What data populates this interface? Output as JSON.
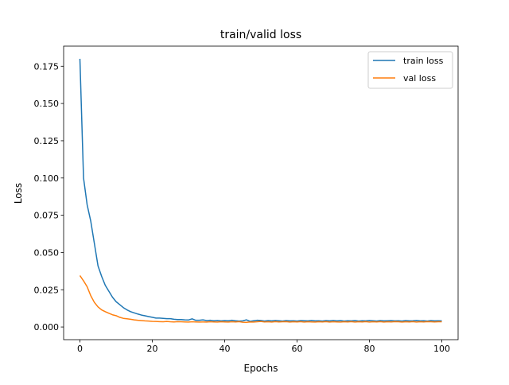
{
  "chart_data": {
    "type": "line",
    "title": "train/valid loss",
    "xlabel": "Epochs",
    "ylabel": "Loss",
    "xlim": [
      -4.5,
      104.5
    ],
    "ylim": [
      -0.0085,
      0.1885
    ],
    "xticks": [
      0,
      20,
      40,
      60,
      80,
      100
    ],
    "xtick_labels": [
      "0",
      "20",
      "40",
      "60",
      "80",
      "100"
    ],
    "yticks": [
      0.0,
      0.025,
      0.05,
      0.075,
      0.1,
      0.125,
      0.15,
      0.175
    ],
    "ytick_labels": [
      "0.000",
      "0.025",
      "0.050",
      "0.075",
      "0.100",
      "0.125",
      "0.150",
      "0.175"
    ],
    "grid": false,
    "legend": "top-right",
    "x": [
      0,
      1,
      2,
      3,
      4,
      5,
      6,
      7,
      8,
      9,
      10,
      11,
      12,
      13,
      14,
      15,
      16,
      17,
      18,
      19,
      20,
      21,
      22,
      23,
      24,
      25,
      26,
      27,
      28,
      29,
      30,
      31,
      32,
      33,
      34,
      35,
      36,
      37,
      38,
      39,
      40,
      41,
      42,
      43,
      44,
      45,
      46,
      47,
      48,
      49,
      50,
      51,
      52,
      53,
      54,
      55,
      56,
      57,
      58,
      59,
      60,
      61,
      62,
      63,
      64,
      65,
      66,
      67,
      68,
      69,
      70,
      71,
      72,
      73,
      74,
      75,
      76,
      77,
      78,
      79,
      80,
      81,
      82,
      83,
      84,
      85,
      86,
      87,
      88,
      89,
      90,
      91,
      92,
      93,
      94,
      95,
      96,
      97,
      98,
      99,
      100
    ],
    "series": [
      {
        "name": "train loss",
        "color": "#1f77b4",
        "values": [
          0.18,
          0.1,
          0.082,
          0.071,
          0.056,
          0.041,
          0.034,
          0.028,
          0.024,
          0.02,
          0.017,
          0.015,
          0.013,
          0.0115,
          0.0103,
          0.0095,
          0.0087,
          0.008,
          0.0075,
          0.007,
          0.0065,
          0.006,
          0.006,
          0.0058,
          0.0056,
          0.0056,
          0.0052,
          0.005,
          0.005,
          0.0048,
          0.0047,
          0.0055,
          0.0045,
          0.0045,
          0.0048,
          0.0043,
          0.0045,
          0.0042,
          0.0044,
          0.0041,
          0.0043,
          0.0042,
          0.0045,
          0.0042,
          0.004,
          0.0041,
          0.0048,
          0.0038,
          0.0042,
          0.0045,
          0.0044,
          0.004,
          0.0043,
          0.0041,
          0.0044,
          0.0042,
          0.004,
          0.0043,
          0.0041,
          0.0042,
          0.004,
          0.0043,
          0.0042,
          0.0041,
          0.0044,
          0.0041,
          0.0042,
          0.004,
          0.0043,
          0.0041,
          0.0044,
          0.0041,
          0.0043,
          0.004,
          0.0042,
          0.0041,
          0.0043,
          0.004,
          0.0042,
          0.0041,
          0.0044,
          0.0042,
          0.004,
          0.0043,
          0.0041,
          0.0042,
          0.0043,
          0.0041,
          0.0042,
          0.004,
          0.0043,
          0.0041,
          0.0042,
          0.0044,
          0.0041,
          0.0042,
          0.004,
          0.0043,
          0.0041,
          0.0042,
          0.0041
        ]
      },
      {
        "name": "val loss",
        "color": "#ff7f0e",
        "values": [
          0.0345,
          0.031,
          0.027,
          0.021,
          0.0165,
          0.0135,
          0.0115,
          0.0103,
          0.0092,
          0.0082,
          0.0076,
          0.0065,
          0.0058,
          0.0055,
          0.0052,
          0.0048,
          0.0045,
          0.0043,
          0.0041,
          0.004,
          0.0038,
          0.0037,
          0.0036,
          0.0035,
          0.0037,
          0.0035,
          0.0034,
          0.0036,
          0.0035,
          0.0034,
          0.0033,
          0.0035,
          0.0034,
          0.0033,
          0.0034,
          0.0033,
          0.0035,
          0.0034,
          0.0033,
          0.0035,
          0.0034,
          0.0033,
          0.0035,
          0.0034,
          0.0036,
          0.0032,
          0.0031,
          0.0034,
          0.0033,
          0.0035,
          0.0037,
          0.0034,
          0.0035,
          0.0033,
          0.0036,
          0.0034,
          0.0035,
          0.0036,
          0.0033,
          0.0035,
          0.0034,
          0.0036,
          0.0033,
          0.0035,
          0.0034,
          0.0033,
          0.0035,
          0.0034,
          0.0036,
          0.0033,
          0.0035,
          0.0034,
          0.0033,
          0.0035,
          0.0034,
          0.0036,
          0.0033,
          0.0035,
          0.0034,
          0.0036,
          0.0033,
          0.0035,
          0.0034,
          0.0036,
          0.0033,
          0.0035,
          0.0034,
          0.0036,
          0.0035,
          0.0033,
          0.0035,
          0.0034,
          0.0036,
          0.0033,
          0.0035,
          0.0034,
          0.0036,
          0.0035,
          0.0034,
          0.0035,
          0.0035
        ]
      }
    ]
  }
}
